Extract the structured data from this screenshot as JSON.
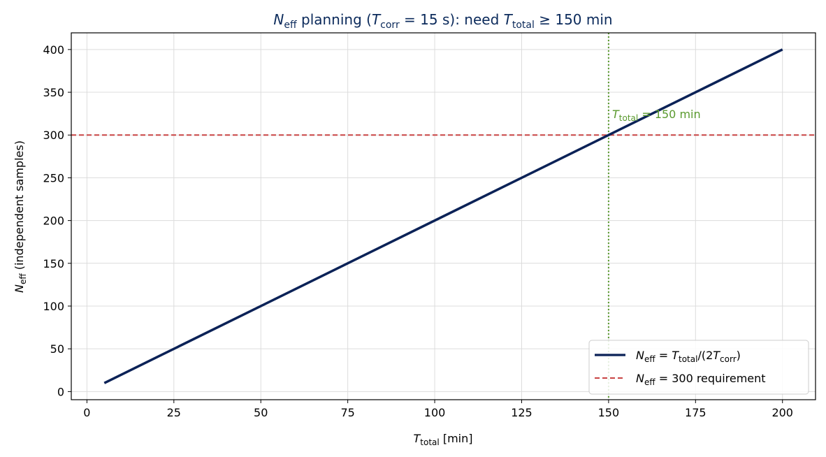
{
  "chart_data": {
    "type": "line",
    "title": {
      "n": "N",
      "n_sub": "eff",
      "mid": " planning (",
      "t": "T",
      "t_sub": "corr",
      "eq": " = 15 s): need ",
      "t2": "T",
      "t2_sub": "total",
      "end": " ≥ 150 min"
    },
    "xlabel": {
      "main": "T",
      "sub": "total",
      "rest": " [min]"
    },
    "ylabel": {
      "main": "N",
      "sub": "eff",
      "rest": " (independent samples)"
    },
    "xlim": [
      -4.5,
      209.5
    ],
    "ylim": [
      -9.5,
      419.5
    ],
    "xticks": [
      0,
      25,
      50,
      75,
      100,
      125,
      150,
      175,
      200
    ],
    "yticks": [
      0,
      50,
      100,
      150,
      200,
      250,
      300,
      350,
      400
    ],
    "grid": true,
    "legend_position": "lower-right",
    "series": [
      {
        "name": "N_eff = T_total/(2T_corr)",
        "legend_parts": [
          "N",
          "eff",
          " = ",
          "T",
          "total",
          "/(2",
          "T",
          "corr",
          ")"
        ],
        "color": "#0b2257",
        "style": "solid",
        "x": [
          5,
          200
        ],
        "y": [
          10,
          400
        ]
      }
    ],
    "hline": {
      "name": "N_eff = 300 requirement",
      "legend_parts": [
        "N",
        "eff",
        " = 300 requirement"
      ],
      "y": 300,
      "color": "#c84444",
      "style": "dashed"
    },
    "vline": {
      "x": 150,
      "color": "#5a9a2e",
      "style": "dotted",
      "annotation": {
        "main": "T",
        "sub": "total",
        "rest": " = 150 min"
      }
    }
  }
}
